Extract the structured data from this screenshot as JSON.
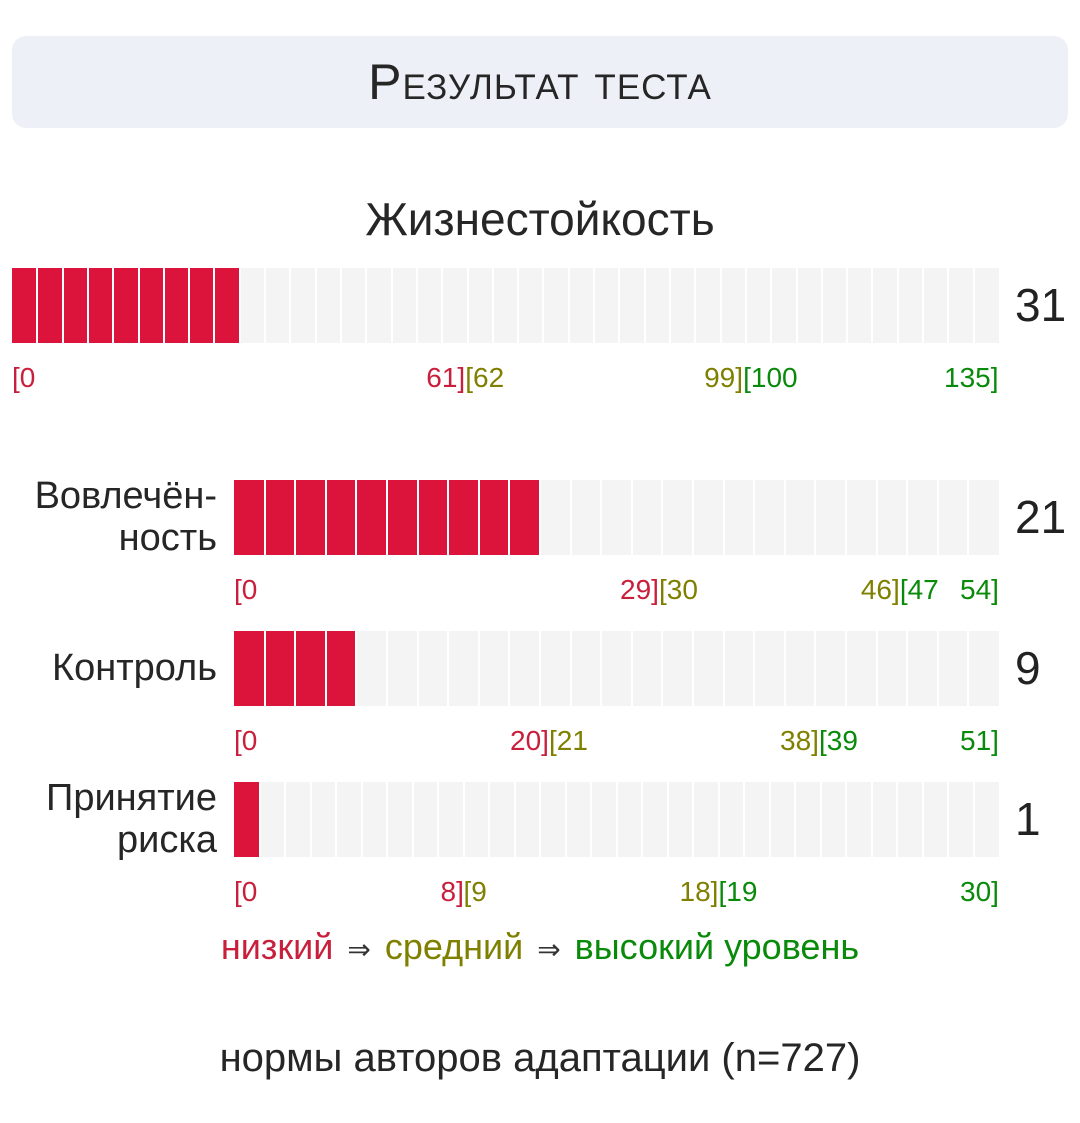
{
  "header": {
    "title": "Результат теста"
  },
  "section_title": "Жизнестойкость",
  "legend": {
    "low": "низкий",
    "arrow": "⇒",
    "mid": "средний",
    "high": "высокий уровень"
  },
  "footer": "нормы авторов адаптации (n=727)",
  "colors": {
    "low": "#c8203c",
    "mid": "#808000",
    "high": "#0a8a0a",
    "fill": "#dc143c",
    "track": "#f4f4f4"
  },
  "chart_data": {
    "type": "bar",
    "scales": [
      {
        "id": "hardiness",
        "label": "",
        "value": 31,
        "max": 135,
        "segments": 39,
        "ticks": [
          {
            "text": "[0",
            "level": "low"
          },
          {
            "text": "61]",
            "level": "low"
          },
          {
            "text": "[62",
            "level": "mid"
          },
          {
            "text": "99]",
            "level": "mid"
          },
          {
            "text": "[100",
            "level": "high"
          },
          {
            "text": "135]",
            "level": "high"
          }
        ]
      },
      {
        "id": "commitment",
        "label": "Вовлечён-\nность",
        "value": 21,
        "max": 54,
        "segments": 25,
        "ticks": [
          {
            "text": "[0",
            "level": "low"
          },
          {
            "text": "29]",
            "level": "low"
          },
          {
            "text": "[30",
            "level": "mid"
          },
          {
            "text": "46]",
            "level": "mid"
          },
          {
            "text": "[47",
            "level": "high"
          },
          {
            "text": "54]",
            "level": "high"
          }
        ]
      },
      {
        "id": "control",
        "label": "Контроль",
        "value": 9,
        "max": 51,
        "segments": 25,
        "ticks": [
          {
            "text": "[0",
            "level": "low"
          },
          {
            "text": "20]",
            "level": "low"
          },
          {
            "text": "[21",
            "level": "mid"
          },
          {
            "text": "38]",
            "level": "mid"
          },
          {
            "text": "[39",
            "level": "high"
          },
          {
            "text": "51]",
            "level": "high"
          }
        ]
      },
      {
        "id": "risk",
        "label": "Принятие\nриска",
        "value": 1,
        "max": 30,
        "segments": 30,
        "ticks": [
          {
            "text": "[0",
            "level": "low"
          },
          {
            "text": "8]",
            "level": "low"
          },
          {
            "text": "[9",
            "level": "mid"
          },
          {
            "text": "18]",
            "level": "mid"
          },
          {
            "text": "[19",
            "level": "high"
          },
          {
            "text": "30]",
            "level": "high"
          }
        ]
      }
    ]
  }
}
